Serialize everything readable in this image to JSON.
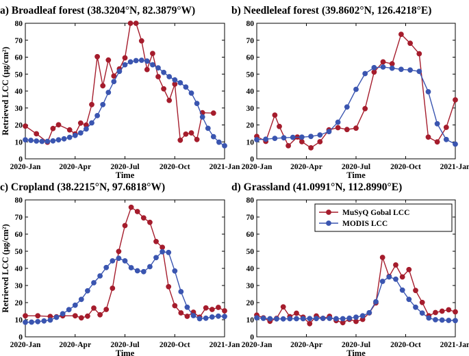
{
  "colors": {
    "musyq": "#a51c2c",
    "modis": "#3a55b0"
  },
  "legend": {
    "musyq": "MuSyQ Gobal LCC",
    "modis": "MODIS LCC"
  },
  "chart_data": [
    {
      "type": "line",
      "title": "a) Broadleaf forest (38.3204°N, 82.3879°W)",
      "xlabel": "Time",
      "ylabel": "Retrieved LCC (μg/cm²)",
      "xticks": [
        "2020-Jan",
        "2020-Apr",
        "2020-Jul",
        "2020-Oct",
        "2021-Jan"
      ],
      "ylim": [
        0,
        80
      ],
      "yticks": [
        0,
        10,
        20,
        30,
        40,
        50,
        60,
        70,
        80
      ],
      "series": [
        {
          "name": "MuSyQ Gobal LCC",
          "x": [
            1,
            9,
            17,
            21,
            25,
            33,
            37,
            41,
            45,
            49,
            53,
            57,
            61,
            65,
            69,
            73,
            77,
            81,
            85,
            89,
            93,
            97,
            101,
            105,
            109,
            113,
            117,
            121,
            125,
            129,
            137,
            145
          ],
          "y": [
            19.3,
            14.8,
            9.8,
            17.9,
            20.1,
            17.1,
            14.7,
            21.1,
            19.9,
            32.0,
            60.3,
            43.1,
            58.3,
            48.9,
            53.1,
            59.6,
            80.0,
            80.0,
            69.6,
            52.7,
            62.2,
            48.5,
            41.3,
            34.5,
            44.1,
            11.0,
            14.6,
            15.3,
            11.4,
            27.2,
            27.0,
            null
          ]
        },
        {
          "name": "MODIS LCC",
          "x": [
            1,
            5,
            9,
            13,
            17,
            21,
            25,
            29,
            33,
            37,
            41,
            45,
            49,
            53,
            57,
            61,
            65,
            69,
            73,
            77,
            81,
            85,
            89,
            93,
            97,
            101,
            105,
            109,
            113,
            117,
            121,
            125,
            129,
            133,
            137,
            141,
            145
          ],
          "y": [
            11.2,
            10.9,
            10.5,
            10.3,
            10.3,
            10.6,
            11.2,
            11.8,
            12.7,
            13.8,
            15.3,
            17.6,
            21.2,
            25.5,
            32.0,
            39.2,
            45.6,
            51.6,
            55.5,
            57.2,
            58.0,
            58.2,
            57.7,
            55.5,
            53.7,
            51.0,
            48.5,
            46.6,
            44.9,
            42.4,
            38.8,
            32.7,
            24.7,
            18.0,
            13.1,
            9.8,
            7.7
          ]
        }
      ]
    },
    {
      "type": "line",
      "title": "b) Needleleaf forest (39.8602°N, 126.4218°E)",
      "xlabel": "Time",
      "ylabel": "",
      "xticks": [
        "2020-Jan",
        "2020-Apr",
        "2020-Jul",
        "2020-Oct",
        "2021-Jan"
      ],
      "ylim": [
        0,
        80
      ],
      "yticks": [
        0,
        10,
        20,
        30,
        40,
        50,
        60,
        70,
        80
      ],
      "series": [
        {
          "name": "MuSyQ Gobal LCC",
          "x": [
            1,
            9,
            17,
            21,
            29,
            37,
            41,
            49,
            57,
            65,
            73,
            81,
            89,
            97,
            105,
            113,
            121,
            129,
            137,
            145,
            153,
            161,
            169,
            177
          ],
          "y": [
            13.2,
            10.3,
            25.8,
            19.1,
            7.7,
            12.9,
            10.1,
            6.5,
            10.1,
            17.1,
            18.4,
            17.3,
            18.1,
            29.6,
            51.2,
            57.2,
            56.1,
            73.5,
            68.2,
            62.0,
            12.8,
            10.0,
            18.6,
            34.8
          ]
        },
        {
          "name": "MODIS LCC",
          "x": [
            1,
            9,
            17,
            25,
            33,
            41,
            49,
            57,
            65,
            73,
            81,
            89,
            97,
            105,
            113,
            121,
            129,
            137,
            145,
            153,
            161,
            169,
            177
          ],
          "y": [
            11.3,
            11.6,
            12.1,
            12.4,
            12.7,
            12.8,
            13.2,
            14.1,
            16.1,
            21.6,
            30.6,
            41.0,
            50.3,
            53.8,
            54.2,
            53.5,
            52.8,
            52.4,
            51.6,
            39.6,
            20.7,
            11.4,
            8.7
          ]
        }
      ]
    },
    {
      "type": "line",
      "title": "c) Cropland (38.2215°N, 97.6818°W)",
      "xlabel": "Time",
      "ylabel": "Retrieved LCC (μg/cm²)",
      "xticks": [
        "2020-Jan",
        "2020-Apr",
        "2020-Jul",
        "2020-Oct",
        "2021-Jan"
      ],
      "ylim": [
        0,
        80
      ],
      "yticks": [
        0,
        10,
        20,
        30,
        40,
        50,
        60,
        70,
        80
      ],
      "series": [
        {
          "name": "MuSyQ Gobal LCC",
          "x": [
            1,
            9,
            17,
            21,
            25,
            33,
            37,
            41,
            45,
            49,
            53,
            57,
            61,
            65,
            69,
            73,
            77,
            81,
            85,
            89,
            93,
            97,
            101,
            105,
            109,
            113,
            117,
            121,
            125,
            129
          ],
          "y": [
            12.3,
            12.3,
            11.9,
            11.7,
            12.3,
            12.3,
            11.1,
            12.1,
            16.8,
            12.9,
            16.0,
            28.4,
            49.9,
            65.0,
            75.7,
            73.2,
            69.5,
            66.9,
            55.7,
            52.3,
            29.3,
            18.2,
            14.0,
            12.0,
            14.4,
            11.5,
            16.9,
            16.0,
            17.2,
            15.2
          ]
        },
        {
          "name": "MODIS LCC",
          "x": [
            1,
            5,
            9,
            13,
            17,
            21,
            25,
            29,
            33,
            37,
            41,
            45,
            49,
            53,
            57,
            61,
            65,
            69,
            73,
            77,
            81,
            85,
            89,
            93,
            97,
            101,
            105,
            109,
            113,
            117,
            121,
            125,
            129
          ],
          "y": [
            8.5,
            8.6,
            8.9,
            9.3,
            9.8,
            11.4,
            13.5,
            15.9,
            18.5,
            21.9,
            26.9,
            31.6,
            35.6,
            40.5,
            44.4,
            45.9,
            44.4,
            40.4,
            38.6,
            38.1,
            41.0,
            46.3,
            49.7,
            49.3,
            38.5,
            26.4,
            17.3,
            12.4,
            10.6,
            10.9,
            11.6,
            12.1,
            11.9
          ]
        }
      ]
    },
    {
      "type": "line",
      "title": "d) Grassland (41.0991°N, 112.8990°E)",
      "xlabel": "Time",
      "ylabel": "",
      "xticks": [
        "2020-Jan",
        "2020-Apr",
        "2020-Jul",
        "2020-Oct",
        "2021-Jan"
      ],
      "ylim": [
        0,
        80
      ],
      "yticks": [
        0,
        10,
        20,
        30,
        40,
        50,
        60,
        70,
        80
      ],
      "legend_position": "top-right",
      "series": [
        {
          "name": "MuSyQ Gobal LCC",
          "x": [
            1,
            9,
            17,
            25,
            33,
            41,
            49,
            57,
            65,
            73,
            81,
            89,
            97,
            105,
            113,
            121,
            129,
            137,
            145,
            153,
            161,
            169,
            177,
            185,
            193,
            201,
            209,
            217,
            225,
            233,
            241
          ],
          "y": [
            12.7,
            11.1,
            9.1,
            10.8,
            17.5,
            11.8,
            13.8,
            11.5,
            7.7,
            12.2,
            10.8,
            12.0,
            9.5,
            8.3,
            10.2,
            9.0,
            10.2,
            14.0,
            19.8,
            46.4,
            35.3,
            42.0,
            35.0,
            39.3,
            27.1,
            20.1,
            12.3,
            14.2,
            15.0,
            15.8,
            14.6
          ]
        },
        {
          "name": "MODIS LCC",
          "x": [
            1,
            9,
            17,
            25,
            33,
            41,
            49,
            57,
            65,
            73,
            81,
            89,
            97,
            105,
            113,
            121,
            129,
            137,
            145,
            153,
            161,
            169,
            177,
            185,
            193,
            201,
            209,
            217,
            225,
            233,
            241
          ],
          "y": [
            11.1,
            10.8,
            10.6,
            10.5,
            10.5,
            10.6,
            10.6,
            10.6,
            10.7,
            10.7,
            10.8,
            10.8,
            10.6,
            10.6,
            10.9,
            11.5,
            12.3,
            14.1,
            20.5,
            32.4,
            35.0,
            33.7,
            27.3,
            21.9,
            17.3,
            13.9,
            11.0,
            10.0,
            9.8,
            9.6,
            9.5
          ]
        }
      ]
    }
  ]
}
